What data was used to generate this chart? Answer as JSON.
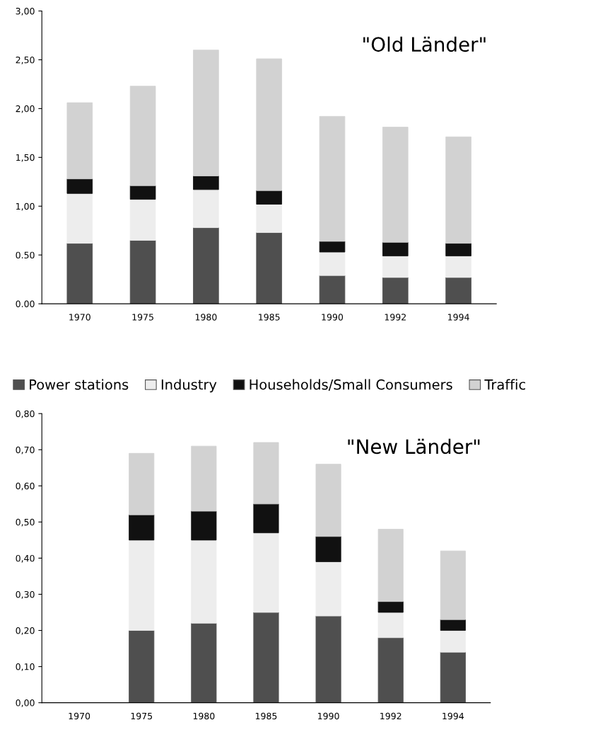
{
  "chart_data": [
    {
      "type": "bar",
      "stacked": true,
      "categories": [
        "1970",
        "1975",
        "1980",
        "1985",
        "1990",
        "1992",
        "1994"
      ],
      "series": [
        {
          "name": "Power stations",
          "color": "#4f4f4f",
          "values": [
            0.62,
            0.65,
            0.78,
            0.73,
            0.29,
            0.27,
            0.27
          ]
        },
        {
          "name": "Industry",
          "color": "#ededed",
          "values": [
            0.51,
            0.42,
            0.39,
            0.29,
            0.24,
            0.22,
            0.22
          ]
        },
        {
          "name": "Households/Small Consumers",
          "color": "#111111",
          "values": [
            0.15,
            0.14,
            0.14,
            0.14,
            0.11,
            0.14,
            0.13
          ]
        },
        {
          "name": "Traffic",
          "color": "#d2d2d2",
          "values": [
            0.78,
            1.02,
            1.29,
            1.35,
            1.28,
            1.18,
            1.09
          ]
        }
      ],
      "ylim": [
        0,
        3
      ],
      "yticks": [
        {
          "value": 0,
          "label": "0.00"
        },
        {
          "value": 0.5,
          "label": "0.50"
        },
        {
          "value": 1,
          "label": "1,00"
        },
        {
          "value": 1.5,
          "label": "1,50"
        },
        {
          "value": 2,
          "label": "2,00"
        },
        {
          "value": 2.5,
          "label": "2,50"
        },
        {
          "value": 3,
          "label": "3,00"
        }
      ],
      "grid": false,
      "legend": "bottom",
      "annotations": [
        "\"Old Länder\""
      ]
    },
    {
      "type": "bar",
      "stacked": true,
      "categories": [
        "1970",
        "1975",
        "1980",
        "1985",
        "1990",
        "1992",
        "1994"
      ],
      "series": [
        {
          "color": "#4f4f4f",
          "values": [
            null,
            0.2,
            0.22,
            0.25,
            0.24,
            0.18,
            0.14
          ]
        },
        {
          "color": "#ededed",
          "values": [
            null,
            0.25,
            0.23,
            0.22,
            0.15,
            0.07,
            0.06
          ]
        },
        {
          "color": "#111111",
          "values": [
            null,
            0.07,
            0.08,
            0.08,
            0.07,
            0.03,
            0.03
          ]
        },
        {
          "color": "#d2d2d2",
          "values": [
            null,
            0.17,
            0.18,
            0.17,
            0.2,
            0.2,
            0.19
          ]
        }
      ],
      "ylim": [
        0,
        0.8
      ],
      "yticks": [
        {
          "value": 0,
          "label": "0,00"
        },
        {
          "value": 0.1,
          "label": "0,10"
        },
        {
          "value": 0.2,
          "label": "0,20"
        },
        {
          "value": 0.3,
          "label": "0,30"
        },
        {
          "value": 0.4,
          "label": "0,40"
        },
        {
          "value": 0.5,
          "label": "0,50"
        },
        {
          "value": 0.6,
          "label": "0,60"
        },
        {
          "value": 0.7,
          "label": "0,70"
        },
        {
          "value": 0.8,
          "label": "0,80"
        }
      ],
      "grid": false,
      "annotations": [
        "\"New Länder\""
      ]
    }
  ]
}
